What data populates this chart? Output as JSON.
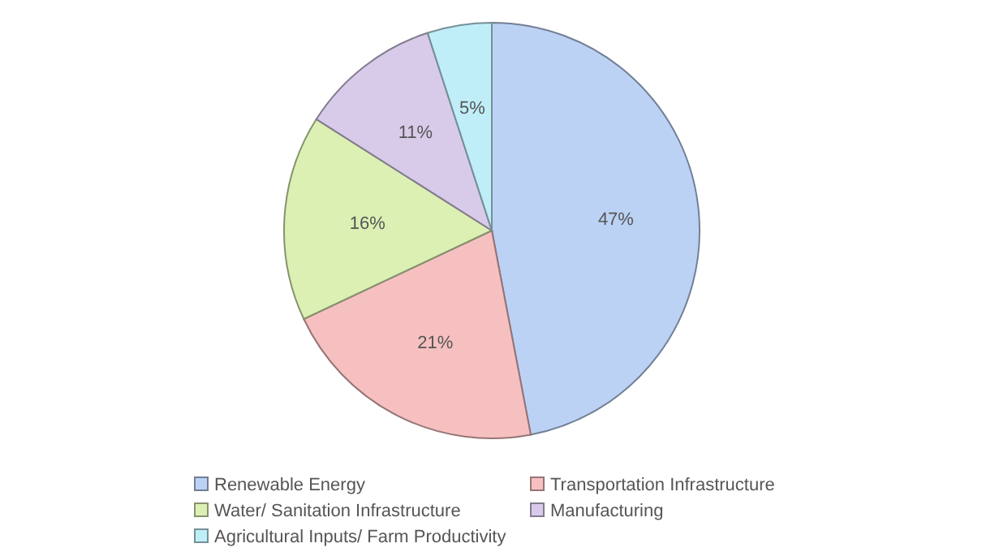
{
  "chart_data": {
    "type": "pie",
    "categories": [
      "Renewable Energy",
      "Transportation Infrastructure",
      "Water/ Sanitation Infrastructure",
      "Manufacturing",
      "Agricultural Inputs/ Farm Productivity"
    ],
    "values": [
      47,
      21,
      16,
      11,
      5
    ],
    "colors": [
      "#bcd2f5",
      "#f7c0c0",
      "#dcf0b4",
      "#d8cbea",
      "#c0eef8"
    ],
    "value_labels": [
      "47%",
      "21%",
      "16%",
      "11%",
      "5%"
    ],
    "legend": "bottom"
  }
}
